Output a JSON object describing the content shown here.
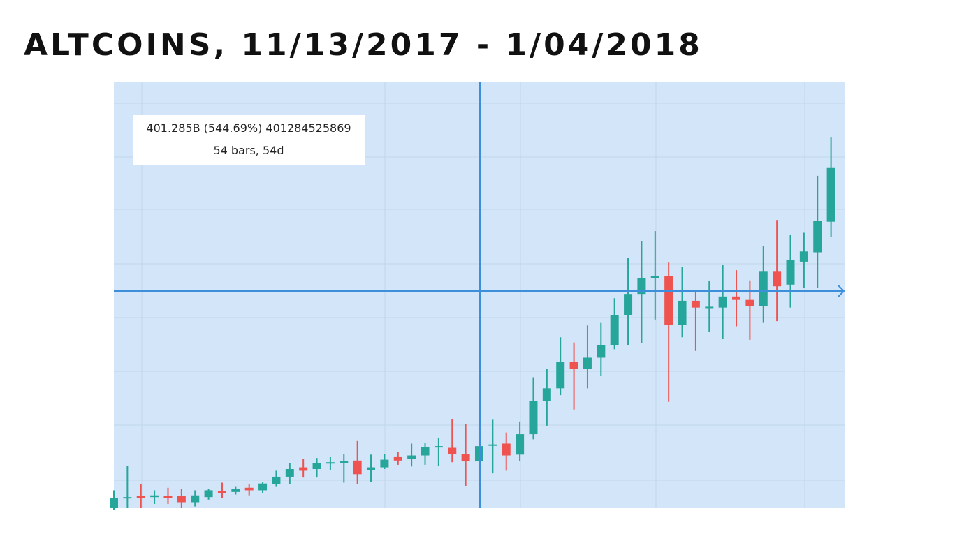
{
  "chart_data": {
    "type": "candlestick",
    "title": "ALTCOINS, 11/13/2017 - 1/04/2018",
    "annotations": [
      "401.285B (544.69%) 401284525869",
      "54 bars, 54d"
    ],
    "up_color": "#26a69a",
    "down_color": "#ef5350",
    "ylim": [
      74,
      575
    ],
    "series": [
      {
        "open": [
          74,
          86,
          88,
          87,
          88,
          88,
          81,
          87,
          94,
          93,
          98,
          95,
          102,
          111,
          122,
          120,
          127,
          128,
          130,
          119,
          122,
          134,
          132,
          136,
          146,
          145,
          138,
          129,
          148,
          150,
          137,
          161,
          200,
          215,
          246,
          238,
          251,
          266,
          301,
          326,
          345,
          347,
          290,
          318,
          310,
          310,
          323,
          319,
          312,
          353,
          337,
          364,
          375,
          411
        ],
        "high": [
          95,
          124,
          102,
          95,
          98,
          97,
          95,
          97,
          104,
          99,
          102,
          105,
          118,
          127,
          132,
          133,
          134,
          138,
          153,
          137,
          138,
          140,
          150,
          151,
          157,
          179,
          173,
          176,
          178,
          163,
          176,
          228,
          238,
          275,
          269,
          289,
          292,
          321,
          368,
          388,
          400,
          363,
          358,
          328,
          341,
          360,
          354,
          342,
          382,
          413,
          396,
          398,
          465,
          510
        ],
        "low": [
          72,
          74,
          74,
          79,
          79,
          74,
          76,
          84,
          86,
          90,
          89,
          92,
          99,
          102,
          110,
          110,
          119,
          104,
          102,
          105,
          120,
          125,
          123,
          125,
          124,
          128,
          100,
          99,
          115,
          118,
          129,
          155,
          171,
          207,
          190,
          215,
          230,
          261,
          266,
          268,
          296,
          199,
          275,
          259,
          281,
          273,
          288,
          272,
          292,
          294,
          310,
          333,
          333,
          393
        ],
        "close": [
          86,
          87,
          86,
          89,
          86,
          81,
          89,
          95,
          92,
          97,
          95,
          103,
          111,
          120,
          118,
          127,
          128,
          129,
          114,
          122,
          131,
          130,
          136,
          146,
          147,
          138,
          129,
          147,
          149,
          136,
          161,
          200,
          215,
          246,
          238,
          251,
          266,
          301,
          326,
          345,
          347,
          290,
          318,
          310,
          311,
          323,
          319,
          312,
          353,
          335,
          366,
          376,
          412,
          475
        ]
      }
    ]
  }
}
